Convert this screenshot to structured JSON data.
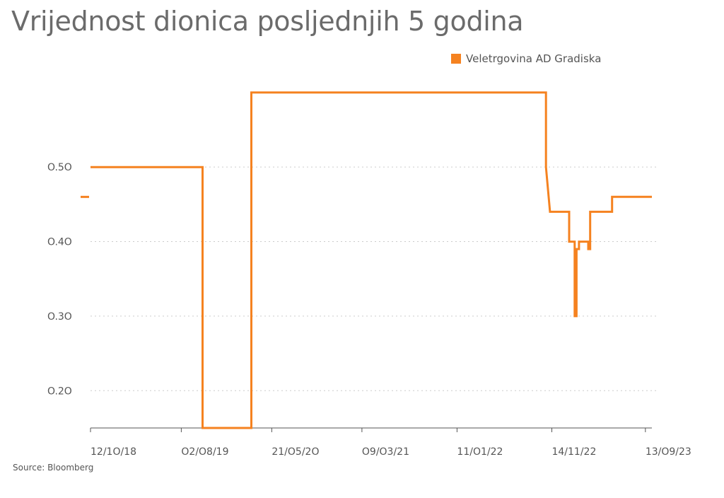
{
  "title": "Vrijednost dionica posljednjih 5 godina",
  "source": "Source: Bloomberg",
  "colors": {
    "series": "#f58220",
    "grid": "#cccccc",
    "axis": "#555555"
  },
  "chart_data": {
    "type": "line",
    "title": "Vrijednost dionica posljednjih 5 godina",
    "xlabel": "",
    "ylabel": "",
    "ylim": [
      0.15,
      0.615
    ],
    "xlim": [
      "2018-10-12",
      "2023-10-04"
    ],
    "grid": true,
    "legend_position": "top-right",
    "x_ticks": [
      {
        "date": "2018-10-12",
        "label": "12/1O/18"
      },
      {
        "date": "2019-08-02",
        "label": "O2/O8/19"
      },
      {
        "date": "2020-05-21",
        "label": "21/O5/2O"
      },
      {
        "date": "2021-03-09",
        "label": "O9/O3/21"
      },
      {
        "date": "2022-01-11",
        "label": "11/O1/22"
      },
      {
        "date": "2022-11-14",
        "label": "14/11/22"
      },
      {
        "date": "2023-09-13",
        "label": "13/O9/23"
      }
    ],
    "y_ticks": [
      {
        "value": 0.2,
        "label": "O.2O"
      },
      {
        "value": 0.3,
        "label": "O.3O"
      },
      {
        "value": 0.4,
        "label": "O.4O"
      },
      {
        "value": 0.5,
        "label": "O.5O"
      }
    ],
    "side_marker": {
      "value": 0.46
    },
    "series": [
      {
        "name": "Veletrgovina AD Gradiska",
        "points": [
          [
            "2018-10-12",
            0.5
          ],
          [
            "2019-10-10",
            0.5
          ],
          [
            "2019-10-10",
            0.15
          ],
          [
            "2020-03-16",
            0.15
          ],
          [
            "2020-03-16",
            0.6
          ],
          [
            "2022-10-26",
            0.6
          ],
          [
            "2022-10-26",
            0.5
          ],
          [
            "2022-11-08",
            0.44
          ],
          [
            "2023-01-09",
            0.44
          ],
          [
            "2023-01-09",
            0.4
          ],
          [
            "2023-01-27",
            0.4
          ],
          [
            "2023-01-27",
            0.3
          ],
          [
            "2023-02-02",
            0.3
          ],
          [
            "2023-02-02",
            0.39
          ],
          [
            "2023-02-10",
            0.39
          ],
          [
            "2023-02-10",
            0.4
          ],
          [
            "2023-03-12",
            0.4
          ],
          [
            "2023-03-12",
            0.39
          ],
          [
            "2023-03-18",
            0.39
          ],
          [
            "2023-03-18",
            0.44
          ],
          [
            "2023-05-28",
            0.44
          ],
          [
            "2023-05-28",
            0.46
          ],
          [
            "2023-10-04",
            0.46
          ]
        ]
      }
    ]
  }
}
